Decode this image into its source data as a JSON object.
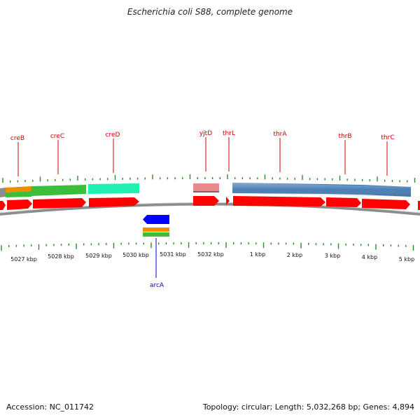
{
  "title": "Escherichia coli S88, complete genome",
  "accession": "Accession: NC_011742",
  "summary": "Topology: circular; Length: 5,032,268 bp; Genes: 4,894",
  "colors": {
    "backbone": "#8c8c8c",
    "tick": "#2a8a2a",
    "forward_gene": "#ff0000",
    "reverse_gene": "#0000ff",
    "forward_label": "#cc0000",
    "reverse_label": "#0000cc",
    "feature_green": "#3bbf3b",
    "feature_orange": "#f08c00",
    "feature_teal": "#22f0b0",
    "feature_pink": "#e88a8a",
    "feature_steel": "#4a7fb5",
    "feature_grey": "#8c8c8c"
  },
  "scale_labels": [
    "5027 kbp",
    "5028 kbp",
    "5029 kbp",
    "5030 kbp",
    "5031 kbp",
    "5032 kbp",
    "1 kbp",
    "2 kbp",
    "3 kbp",
    "4 kbp",
    "5 kbp"
  ],
  "genes_forward": [
    "creB",
    "creC",
    "creD",
    "yjtD",
    "thrL",
    "thrA",
    "thrB",
    "thrC"
  ],
  "genes_reverse": [
    "arcA"
  ]
}
